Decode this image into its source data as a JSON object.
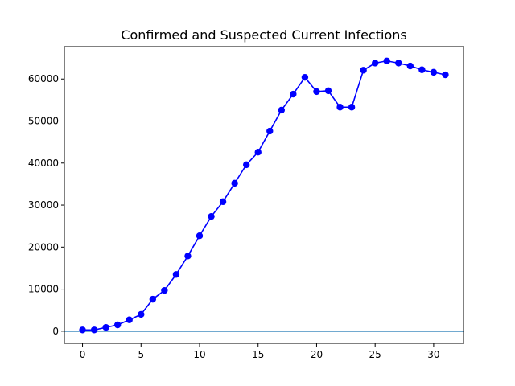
{
  "chart_data": {
    "type": "line",
    "title": "Confirmed and Suspected Current Infections",
    "xlabel": "",
    "ylabel": "",
    "xlim": [
      -1.55,
      32.55
    ],
    "ylim": [
      -2900,
      67700
    ],
    "xticks": [
      0,
      5,
      10,
      15,
      20,
      25,
      30
    ],
    "yticks": [
      0,
      10000,
      20000,
      30000,
      40000,
      50000,
      60000
    ],
    "grid": false,
    "legend": "none",
    "series": [
      {
        "color": "#0000ff",
        "marker": "circle",
        "x": [
          0,
          1,
          2,
          3,
          4,
          5,
          6,
          7,
          8,
          9,
          10,
          11,
          12,
          13,
          14,
          15,
          16,
          17,
          18,
          19,
          20,
          21,
          22,
          23,
          24,
          25,
          26,
          27,
          28,
          29,
          30,
          31
        ],
        "y": [
          300,
          300,
          900,
          1500,
          2700,
          4000,
          7600,
          9700,
          13500,
          17900,
          22700,
          27300,
          30800,
          35200,
          39600,
          42600,
          47600,
          52600,
          56400,
          60400,
          57000,
          57200,
          53300,
          53300,
          62100,
          63800,
          64300,
          63800,
          63100,
          62200,
          61600,
          61000
        ]
      }
    ],
    "reference_lines": [
      {
        "orientation": "horizontal",
        "y": 0,
        "color": "#1f77b4"
      }
    ]
  }
}
